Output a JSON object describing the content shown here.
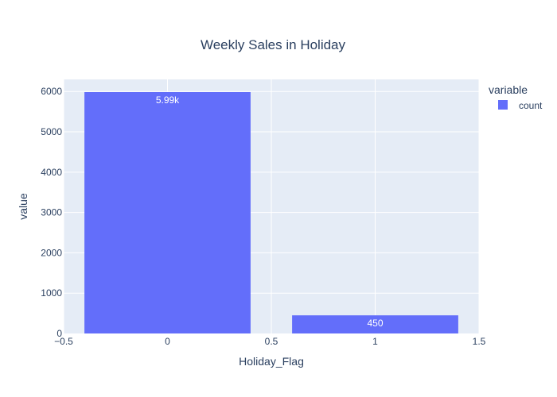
{
  "chart_data": {
    "type": "bar",
    "title": "Weekly Sales in Holiday",
    "xlabel": "Holiday_Flag",
    "ylabel": "value",
    "x": [
      0,
      1
    ],
    "series": [
      {
        "name": "count",
        "values": [
          5985,
          450
        ],
        "labels": [
          "5.99k",
          "450"
        ]
      }
    ],
    "xlim": [
      -0.5,
      1.5
    ],
    "ylim": [
      0,
      6300
    ],
    "xticks": [
      -0.5,
      0,
      0.5,
      1,
      1.5
    ],
    "xtick_labels": [
      "−0.5",
      "0",
      "0.5",
      "1",
      "1.5"
    ],
    "yticks": [
      0,
      1000,
      2000,
      3000,
      4000,
      5000,
      6000
    ],
    "ytick_labels": [
      "0",
      "1000",
      "2000",
      "3000",
      "4000",
      "5000",
      "6000"
    ],
    "grid": true,
    "legend": {
      "title": "variable",
      "placement": "top-right"
    },
    "colors": {
      "bar": "#636efa",
      "plot_bg": "#e5ecf6",
      "grid": "#ffffff",
      "text": "#2a3f5f"
    }
  }
}
